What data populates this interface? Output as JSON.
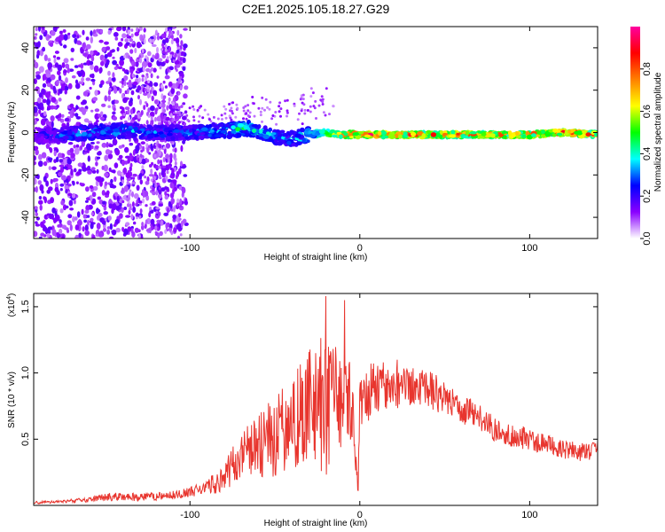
{
  "title": "C2E1.2025.105.18.27.G29",
  "chart_data": [
    {
      "type": "heatmap",
      "xlabel": "Height of straight line (km)",
      "ylabel": "Frequency (Hz)",
      "xlim": [
        -192,
        140
      ],
      "ylim": [
        -50,
        50
      ],
      "xticks": [
        -100,
        0,
        100
      ],
      "xtick_labels": [
        "-100",
        "0",
        "100"
      ],
      "yticks": [
        -40,
        -20,
        0,
        20,
        40
      ],
      "ytick_labels": [
        "-40",
        "-20",
        "0",
        "20",
        "40"
      ],
      "colorbar": {
        "label": "Normalized spectral amplitude",
        "range": [
          0,
          1
        ],
        "ticks": [
          0.0,
          0.2,
          0.4,
          0.6,
          0.8
        ],
        "tick_labels": [
          "0.0",
          "0.2",
          "0.4",
          "0.6",
          "0.8"
        ],
        "colors": [
          "#ffffff",
          "#8a00ff",
          "#0000ff",
          "#00ffff",
          "#00ff00",
          "#ffff00",
          "#ff8000",
          "#ff0000",
          "#ff00a0"
        ]
      },
      "ridge": {
        "x": [
          -192,
          -175,
          -160,
          -140,
          -120,
          -100,
          -80,
          -65,
          -50,
          -40,
          -30,
          -20,
          -10,
          0,
          20,
          40,
          60,
          80,
          100,
          120,
          140
        ],
        "frequency": [
          -1,
          -1,
          0,
          1,
          0,
          0,
          1,
          2,
          -2,
          -3,
          -1,
          0,
          -1,
          -1,
          -1,
          -1,
          -1,
          -1,
          -1,
          0,
          -1
        ],
        "amplitude": [
          0.2,
          0.3,
          0.35,
          0.35,
          0.3,
          0.3,
          0.4,
          0.45,
          0.35,
          0.35,
          0.45,
          0.65,
          0.8,
          0.85,
          0.85,
          0.8,
          0.8,
          0.75,
          0.8,
          0.9,
          0.75
        ]
      }
    },
    {
      "type": "line",
      "xlabel": "Height of straight line (km)",
      "ylabel": "SNR (10 * v/v)",
      "y_multiplier": "(x10",
      "y_multiplier_exp": "4",
      "y_multiplier_close": ")",
      "xlim": [
        -192,
        140
      ],
      "ylim": [
        0,
        1.6
      ],
      "xticks": [
        -100,
        0,
        100
      ],
      "xtick_labels": [
        "-100",
        "0",
        "100"
      ],
      "yticks": [
        0.5,
        1.0,
        1.5
      ],
      "ytick_labels": [
        "0.5",
        "1.0",
        "1.5"
      ],
      "color": "#e8352e",
      "series": [
        {
          "x": [
            -192,
            -175,
            -160,
            -150,
            -140,
            -130,
            -120,
            -110,
            -100,
            -90,
            -80,
            -75,
            -70,
            -65,
            -60,
            -55,
            -50,
            -45,
            -40,
            -35,
            -30,
            -25,
            -20,
            -15,
            -10,
            -5,
            -1,
            0,
            5,
            10,
            15,
            20,
            25,
            30,
            35,
            40,
            45,
            50,
            55,
            60,
            65,
            70,
            75,
            80,
            85,
            90,
            95,
            100,
            105,
            110,
            115,
            120,
            125,
            130,
            135,
            140
          ],
          "y": [
            0.02,
            0.03,
            0.04,
            0.06,
            0.07,
            0.06,
            0.07,
            0.08,
            0.1,
            0.14,
            0.2,
            0.3,
            0.35,
            0.42,
            0.45,
            0.48,
            0.52,
            0.58,
            0.62,
            0.68,
            0.75,
            0.8,
            0.7,
            0.85,
            0.75,
            0.8,
            0.1,
            0.8,
            0.85,
            0.88,
            0.9,
            0.9,
            0.88,
            0.92,
            0.9,
            0.88,
            0.85,
            0.8,
            0.78,
            0.74,
            0.7,
            0.66,
            0.62,
            0.58,
            0.55,
            0.52,
            0.52,
            0.5,
            0.48,
            0.45,
            0.45,
            0.42,
            0.43,
            0.4,
            0.4,
            0.42
          ],
          "fluctuation": [
            0.01,
            0.01,
            0.02,
            0.03,
            0.03,
            0.03,
            0.03,
            0.03,
            0.04,
            0.06,
            0.1,
            0.15,
            0.18,
            0.22,
            0.25,
            0.28,
            0.3,
            0.32,
            0.35,
            0.4,
            0.45,
            0.5,
            0.55,
            0.4,
            0.35,
            0.3,
            0.05,
            0.2,
            0.22,
            0.2,
            0.2,
            0.18,
            0.18,
            0.16,
            0.16,
            0.14,
            0.14,
            0.13,
            0.12,
            0.12,
            0.11,
            0.1,
            0.1,
            0.1,
            0.09,
            0.09,
            0.09,
            0.09,
            0.08,
            0.08,
            0.08,
            0.08,
            0.07,
            0.07,
            0.07,
            0.07
          ],
          "peaks": [
            [
              -20,
              1.58
            ],
            [
              -9,
              1.55
            ],
            [
              -26,
              1.15
            ],
            [
              22,
              1.1
            ]
          ]
        }
      ]
    }
  ]
}
